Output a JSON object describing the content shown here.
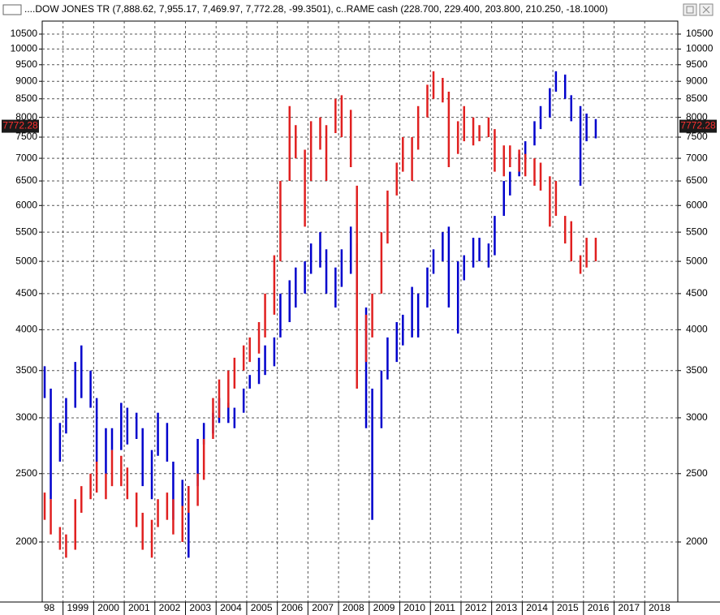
{
  "chart_data": {
    "type": "hlc-bars",
    "title": "....DOW JONES TR (7,888.62, 7,955.17, 7,469.97, 7,772.28, -99.3501), c..RAME cash (228.700, 229.400, 203.800, 210.250, -18.1000)",
    "last_close": 7772.28,
    "log_scale": true,
    "grid": true,
    "ylim": [
      1644,
      10955
    ],
    "yticks": [
      2000,
      2500,
      3000,
      3500,
      4000,
      4500,
      5000,
      5500,
      6000,
      6500,
      7000,
      7500,
      8000,
      8500,
      9000,
      9500,
      10000,
      10500
    ],
    "xlim": [
      1998.32,
      2019.08
    ],
    "xticks": [
      {
        "value": 1998,
        "label": "98"
      },
      1999,
      2000,
      2001,
      2002,
      2003,
      2004,
      2005,
      2006,
      2007,
      2008,
      2009,
      2010,
      2011,
      2012,
      2013,
      2014,
      2015,
      2016,
      2017,
      2018
    ],
    "x": [
      1998.4,
      1998.6,
      1998.9,
      1999.1,
      1999.4,
      1999.6,
      1999.9,
      2000.1,
      2000.4,
      2000.6,
      2000.9,
      2001.1,
      2001.4,
      2001.6,
      2001.9,
      2002.1,
      2002.4,
      2002.6,
      2002.9,
      2003.1,
      2003.4,
      2003.6,
      2003.9,
      2004.1,
      2004.4,
      2004.6,
      2004.9,
      2005.1,
      2005.4,
      2005.6,
      2005.9,
      2006.1,
      2006.4,
      2006.6,
      2006.9,
      2007.1,
      2007.4,
      2007.6,
      2007.9,
      2008.1,
      2008.4,
      2008.6,
      2008.9,
      2009.1,
      2009.4,
      2009.6,
      2009.9,
      2010.1,
      2010.4,
      2010.6,
      2010.9,
      2011.1,
      2011.4,
      2011.6,
      2011.9,
      2012.1,
      2012.4,
      2012.6,
      2012.9,
      2013.1,
      2013.4,
      2013.6,
      2013.9,
      2014.1,
      2014.4,
      2014.6,
      2014.9,
      2015.1,
      2015.4,
      2015.6,
      2015.9,
      2016.1,
      2016.4
    ],
    "series": [
      {
        "color": "#0000cc",
        "high": [
          3550,
          3300,
          2950,
          3200,
          3600,
          3800,
          3500,
          3200,
          2900,
          2900,
          3150,
          3100,
          3050,
          2900,
          2700,
          3050,
          2950,
          2600,
          2450,
          2400,
          2800,
          2950,
          3050,
          3200,
          3150,
          3100,
          3300,
          3450,
          3650,
          3800,
          3900,
          4500,
          4700,
          4900,
          5000,
          5300,
          5500,
          5200,
          4900,
          5200,
          5600,
          5300,
          4300,
          3300,
          3500,
          3900,
          4100,
          4200,
          4600,
          4500,
          4900,
          5200,
          5500,
          5600,
          5000,
          5100,
          5400,
          5400,
          5300,
          5800,
          6500,
          6700,
          7100,
          7400,
          7900,
          8300,
          8800,
          9300,
          9200,
          8600,
          8300,
          8100,
          7955
        ],
        "low": [
          3200,
          2300,
          2600,
          2850,
          3100,
          3200,
          3100,
          2600,
          2500,
          2700,
          2700,
          2750,
          2800,
          2400,
          2300,
          2650,
          2600,
          2150,
          2150,
          1900,
          2400,
          2750,
          2850,
          2950,
          2950,
          2900,
          3050,
          3300,
          3350,
          3450,
          3550,
          3900,
          4100,
          4300,
          4500,
          4800,
          4900,
          4500,
          4300,
          4600,
          4800,
          4500,
          2900,
          2150,
          2900,
          3400,
          3600,
          3800,
          3900,
          3900,
          4300,
          4800,
          5000,
          4300,
          3950,
          4700,
          4900,
          5000,
          4900,
          5100,
          5800,
          6200,
          6600,
          6900,
          7300,
          7700,
          8000,
          8700,
          8500,
          7900,
          6400,
          7400,
          7470
        ]
      },
      {
        "color": "#e02020",
        "high": [
          2350,
          2300,
          2100,
          2050,
          2300,
          2400,
          2500,
          2600,
          2500,
          2700,
          2650,
          2550,
          2350,
          2200,
          2150,
          2300,
          2350,
          2300,
          2250,
          2400,
          2500,
          2800,
          3200,
          3400,
          3500,
          3650,
          3800,
          3900,
          4100,
          4500,
          5100,
          6500,
          8300,
          7800,
          7200,
          7900,
          8000,
          7800,
          8500,
          8600,
          8200,
          6400,
          4200,
          4500,
          5500,
          6300,
          6900,
          7500,
          7500,
          8300,
          8900,
          9300,
          9100,
          8700,
          7900,
          8300,
          8000,
          7800,
          8000,
          7700,
          7300,
          7300,
          7200,
          7100,
          7000,
          6900,
          6600,
          6500,
          5800,
          5700,
          5100,
          5400,
          5400
        ],
        "low": [
          2150,
          2050,
          1950,
          1900,
          1950,
          2200,
          2300,
          2350,
          2300,
          2400,
          2400,
          2300,
          2100,
          1950,
          1900,
          2100,
          2150,
          2050,
          2000,
          2200,
          2250,
          2450,
          2800,
          3000,
          3100,
          3300,
          3500,
          3600,
          3700,
          3900,
          4200,
          5000,
          6500,
          7000,
          5600,
          6500,
          7200,
          6500,
          7600,
          7500,
          6800,
          3300,
          3600,
          3900,
          4500,
          5300,
          6200,
          6700,
          6500,
          7200,
          8000,
          8500,
          8400,
          6800,
          7100,
          7400,
          7300,
          7400,
          7500,
          6700,
          6600,
          6800,
          6700,
          6600,
          6400,
          6300,
          5600,
          5800,
          5300,
          5000,
          4800,
          4900,
          5000
        ]
      }
    ]
  }
}
